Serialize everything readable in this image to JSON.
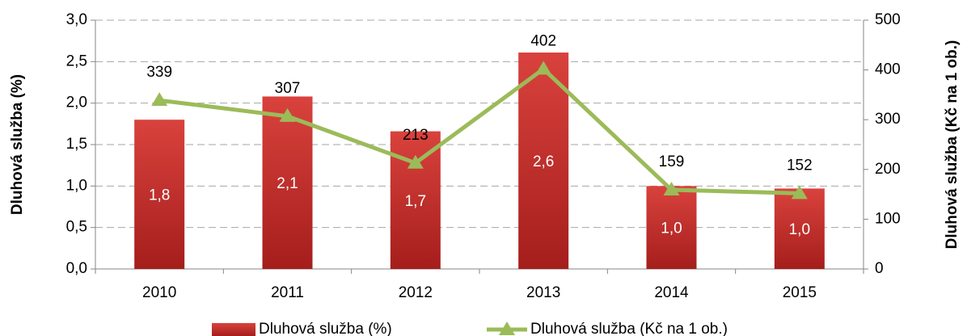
{
  "chart_data": {
    "type": "bar_line",
    "categories": [
      "2010",
      "2011",
      "2012",
      "2013",
      "2014",
      "2015"
    ],
    "y_label": "Dluhová služba (%)",
    "y2_label": "Dluhová služba (Kč na 1 ob.)",
    "ylim": [
      0,
      3
    ],
    "yticks": [
      {
        "value": 0,
        "label": "0,0"
      },
      {
        "value": 0.5,
        "label": "0,5"
      },
      {
        "value": 1,
        "label": "1,0"
      },
      {
        "value": 1.5,
        "label": "1,5"
      },
      {
        "value": 2,
        "label": "2,0"
      },
      {
        "value": 2.5,
        "label": "2,5"
      },
      {
        "value": 3,
        "label": "3,0"
      }
    ],
    "y2lim": [
      0,
      500
    ],
    "y2ticks": [
      0,
      100,
      200,
      300,
      400,
      500
    ],
    "grid": true,
    "legend": "bottom",
    "series": [
      {
        "name": "Dluhová služba (%)",
        "type": "bar",
        "color": "#c0302c",
        "values": [
          1.8,
          2.08,
          1.66,
          2.61,
          1.0,
          0.97
        ],
        "value_labels": [
          "1,8",
          "2,1",
          "1,7",
          "2,6",
          "1,0",
          "1,0"
        ]
      },
      {
        "name": "Dluhová služba (Kč na 1 ob.)",
        "type": "line",
        "axis": "y2",
        "color": "#9bbb59",
        "values": [
          339,
          307,
          213,
          402,
          159,
          152
        ]
      }
    ]
  }
}
